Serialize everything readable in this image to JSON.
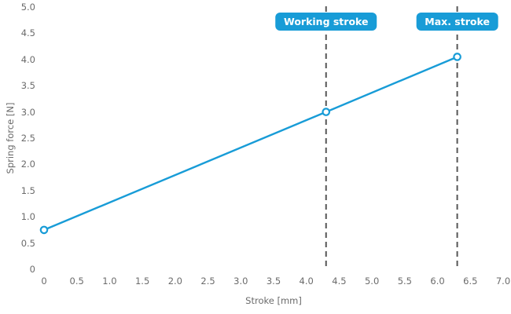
{
  "chart_data": {
    "type": "line",
    "title": "",
    "xlabel": "Stroke [mm]",
    "ylabel": "Spring force [N]",
    "xlim": [
      0,
      7
    ],
    "ylim": [
      0,
      5
    ],
    "grid": false,
    "legend": "none",
    "series": [
      {
        "name": "spring-force",
        "color": "#189cd7",
        "marker": "open-circle",
        "points": [
          [
            0,
            0.75
          ],
          [
            4.3,
            3.0
          ],
          [
            6.3,
            4.05
          ]
        ]
      }
    ],
    "x_ticks": [
      {
        "v": 0,
        "label": "0"
      },
      {
        "v": 0.5,
        "label": "0.5"
      },
      {
        "v": 1,
        "label": "1.0"
      },
      {
        "v": 1.5,
        "label": "1.5"
      },
      {
        "v": 2,
        "label": "2.0"
      },
      {
        "v": 2.5,
        "label": "2.5"
      },
      {
        "v": 3,
        "label": "3.0"
      },
      {
        "v": 3.5,
        "label": "3.5"
      },
      {
        "v": 4,
        "label": "4.0"
      },
      {
        "v": 4.5,
        "label": "4.5"
      },
      {
        "v": 5,
        "label": "5.0"
      },
      {
        "v": 5.5,
        "label": "5.5"
      },
      {
        "v": 6,
        "label": "6.0"
      },
      {
        "v": 6.5,
        "label": "6.5"
      },
      {
        "v": 7,
        "label": "7.0"
      }
    ],
    "y_ticks": [
      {
        "v": 0,
        "label": "0"
      },
      {
        "v": 0.5,
        "label": "0.5"
      },
      {
        "v": 1,
        "label": "1.0"
      },
      {
        "v": 1.5,
        "label": "1.5"
      },
      {
        "v": 2,
        "label": "2.0"
      },
      {
        "v": 2.5,
        "label": "2.5"
      },
      {
        "v": 3,
        "label": "3.0"
      },
      {
        "v": 3.5,
        "label": "3.5"
      },
      {
        "v": 4,
        "label": "4.0"
      },
      {
        "v": 4.5,
        "label": "4.5"
      },
      {
        "v": 5,
        "label": "5.0"
      }
    ],
    "annotations": [
      {
        "name": "working-stroke",
        "x": 4.3,
        "label": "Working stroke"
      },
      {
        "name": "max-stroke",
        "x": 6.3,
        "label": "Max. stroke"
      }
    ],
    "colors": {
      "accent": "#189cd7",
      "text": "#6b6b6b",
      "dashed": "#565656",
      "badge_text": "#ffffff"
    }
  }
}
